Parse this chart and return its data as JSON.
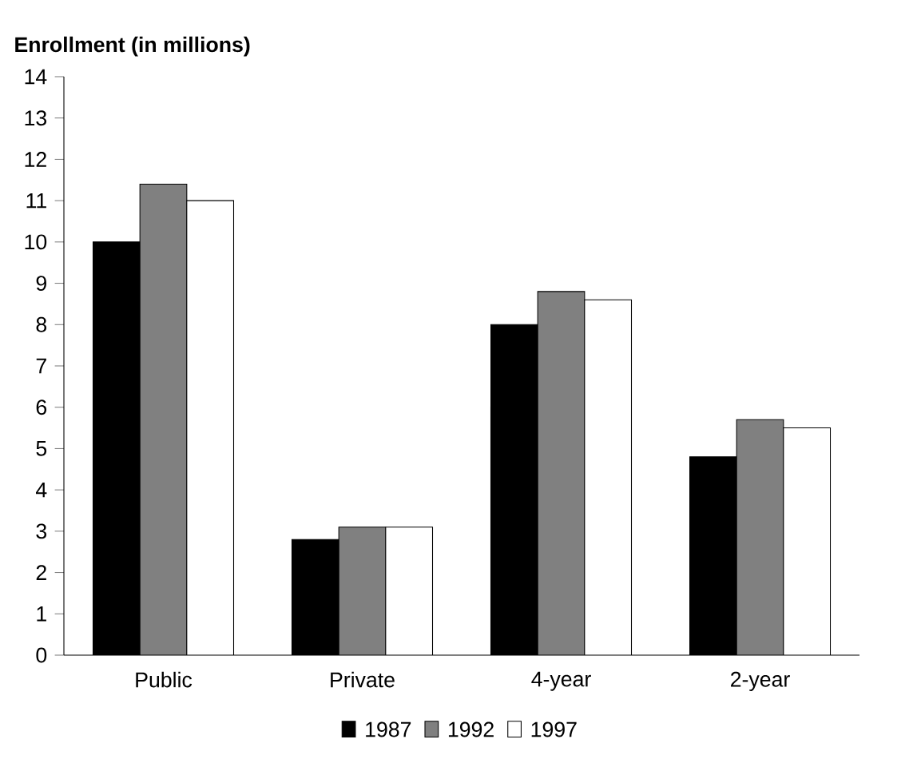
{
  "chart_data": {
    "type": "bar",
    "ylabel": "Enrollment (in millions)",
    "categories": [
      "Public",
      "Private",
      "4-year",
      "2-year"
    ],
    "series": [
      {
        "name": "1987",
        "color": "#000000",
        "values": [
          10.0,
          2.8,
          8.0,
          4.8
        ]
      },
      {
        "name": "1992",
        "color": "#808080",
        "values": [
          11.4,
          3.1,
          8.8,
          5.7
        ]
      },
      {
        "name": "1997",
        "color": "#ffffff",
        "values": [
          11.0,
          3.1,
          8.6,
          5.5
        ]
      }
    ],
    "ylim": [
      0,
      14
    ],
    "yticks": [
      0,
      1,
      2,
      3,
      4,
      5,
      6,
      7,
      8,
      9,
      10,
      11,
      12,
      13,
      14
    ],
    "grid": false,
    "legend": "bottom"
  }
}
